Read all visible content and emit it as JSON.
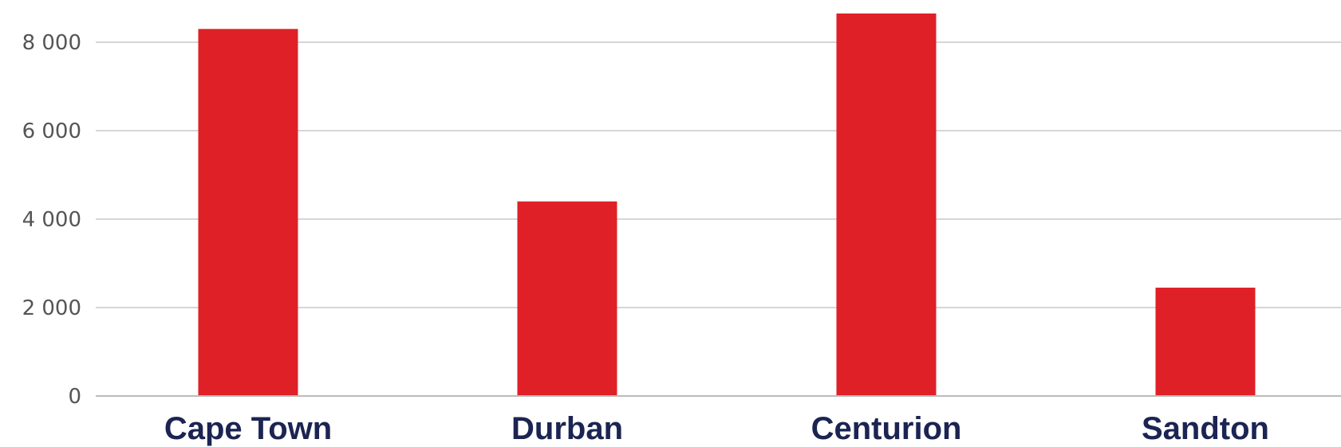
{
  "colors": {
    "bar": "#df2027",
    "grid": "#c8c8c8",
    "axis": "#bbbbbb",
    "category_label": "#1b2452",
    "tick_label": "#555555"
  },
  "chart_data": {
    "type": "bar",
    "title": "",
    "xlabel": "",
    "ylabel": "",
    "categories": [
      "Cape Town",
      "Durban",
      "Centurion",
      "Sandton"
    ],
    "values": [
      8300,
      4400,
      8650,
      2450
    ],
    "ylim": [
      0,
      8800
    ],
    "yticks": [
      0,
      2000,
      4000,
      6000,
      8000
    ],
    "ytick_labels": [
      "0",
      "2 000",
      "4 000",
      "6 000",
      "8 000"
    ],
    "grid": true,
    "legend": "none"
  }
}
